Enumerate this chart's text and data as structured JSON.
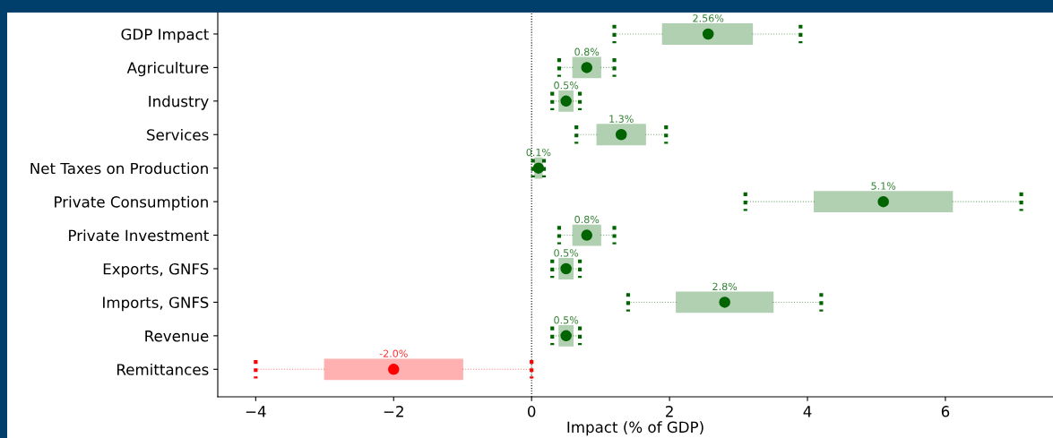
{
  "chart_data": {
    "type": "box",
    "orientation": "horizontal",
    "xlabel": "Impact (% of GDP)",
    "categories": [
      "GDP Impact",
      "Agriculture",
      "Industry",
      "Services",
      "Net Taxes on Production",
      "Private Consumption",
      "Private Investment",
      "Exports, GNFS",
      "Imports, GNFS",
      "Revenue",
      "Remittances"
    ],
    "boxes": [
      {
        "low": 1.2,
        "q1": 1.9,
        "median": 2.56,
        "q3": 3.2,
        "high": 3.9
      },
      {
        "low": 0.4,
        "q1": 0.6,
        "median": 0.8,
        "q3": 1.0,
        "high": 1.2
      },
      {
        "low": 0.3,
        "q1": 0.4,
        "median": 0.5,
        "q3": 0.6,
        "high": 0.7
      },
      {
        "low": 0.65,
        "q1": 0.95,
        "median": 1.3,
        "q3": 1.65,
        "high": 1.95
      },
      {
        "low": 0.02,
        "q1": 0.05,
        "median": 0.1,
        "q3": 0.15,
        "high": 0.18
      },
      {
        "low": 3.1,
        "q1": 4.1,
        "median": 5.1,
        "q3": 6.1,
        "high": 7.1
      },
      {
        "low": 0.4,
        "q1": 0.6,
        "median": 0.8,
        "q3": 1.0,
        "high": 1.2
      },
      {
        "low": 0.3,
        "q1": 0.4,
        "median": 0.5,
        "q3": 0.6,
        "high": 0.7
      },
      {
        "low": 1.4,
        "q1": 2.1,
        "median": 2.8,
        "q3": 3.5,
        "high": 4.2
      },
      {
        "low": 0.3,
        "q1": 0.4,
        "median": 0.5,
        "q3": 0.6,
        "high": 0.7
      },
      {
        "low": -4.0,
        "q1": -3.0,
        "median": -2.0,
        "q3": -1.0,
        "high": 0.0
      }
    ],
    "value_labels": [
      "2.56%",
      "0.8%",
      "0.5%",
      "1.3%",
      "0.1%",
      "5.1%",
      "0.8%",
      "0.5%",
      "2.8%",
      "0.5%",
      "-2.0%"
    ],
    "colors": [
      "#006400",
      "#006400",
      "#006400",
      "#006400",
      "#006400",
      "#006400",
      "#006400",
      "#006400",
      "#006400",
      "#006400",
      "#ff0000"
    ],
    "xlim": [
      -4.55,
      7.56
    ],
    "xticks": [
      {
        "value": -4,
        "label": "−4"
      },
      {
        "value": -2,
        "label": "−2"
      },
      0,
      2,
      4,
      6
    ],
    "ref_lines": [
      {
        "axis": "x",
        "value": 0,
        "color": "#000000",
        "line_style": "dotted"
      }
    ],
    "grid": false
  }
}
